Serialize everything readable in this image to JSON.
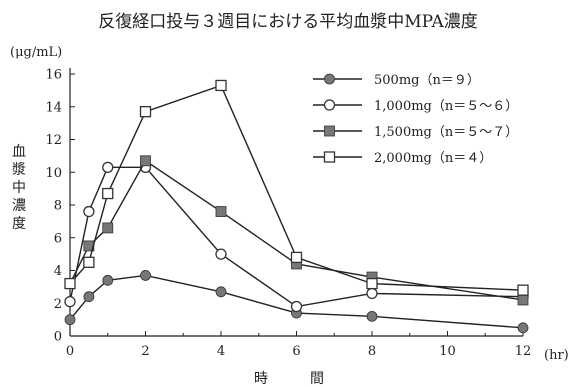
{
  "chart_data": {
    "type": "line",
    "title": "反復経口投与３週目における平均血漿中MPA濃度",
    "ylabel": "血漿中濃度",
    "yunit": "(μg/mL)",
    "xlabel": "時　間",
    "xunit": "(hr)",
    "xlim": [
      0,
      12
    ],
    "ylim": [
      0,
      16
    ],
    "xticks": [
      0,
      2,
      4,
      6,
      8,
      10,
      12
    ],
    "yticks": [
      0,
      2,
      4,
      6,
      8,
      10,
      12,
      14,
      16
    ],
    "grid": false,
    "legend_position": "top-right",
    "series": [
      {
        "name": "500mg（n＝９）",
        "marker": "filled-circle",
        "color": "#777777",
        "points": [
          [
            0,
            1.0
          ],
          [
            0.5,
            2.4
          ],
          [
            1,
            3.4
          ],
          [
            2,
            3.7
          ],
          [
            4,
            2.7
          ],
          [
            6,
            1.4
          ],
          [
            8,
            1.2
          ],
          [
            12,
            0.5
          ]
        ]
      },
      {
        "name": "1,000mg（n＝５～６）",
        "marker": "open-circle",
        "color": "#ffffff",
        "points": [
          [
            0,
            2.1
          ],
          [
            0.5,
            7.6
          ],
          [
            1,
            10.3
          ],
          [
            2,
            10.3
          ],
          [
            4,
            5.0
          ],
          [
            6,
            1.8
          ],
          [
            8,
            2.6
          ],
          [
            12,
            2.4
          ]
        ]
      },
      {
        "name": "1,500mg（n＝５～７）",
        "marker": "filled-square",
        "color": "#777777",
        "points": [
          [
            0,
            3.2
          ],
          [
            0.5,
            5.5
          ],
          [
            1,
            6.6
          ],
          [
            2,
            10.7
          ],
          [
            4,
            7.6
          ],
          [
            6,
            4.4
          ],
          [
            8,
            3.6
          ],
          [
            12,
            2.2
          ]
        ]
      },
      {
        "name": "2,000mg（n＝４）",
        "marker": "open-square",
        "color": "#ffffff",
        "points": [
          [
            0,
            3.2
          ],
          [
            0.5,
            4.5
          ],
          [
            1,
            8.7
          ],
          [
            2,
            13.7
          ],
          [
            4,
            15.3
          ],
          [
            6,
            4.8
          ],
          [
            8,
            3.2
          ],
          [
            12,
            2.8
          ]
        ]
      }
    ]
  }
}
